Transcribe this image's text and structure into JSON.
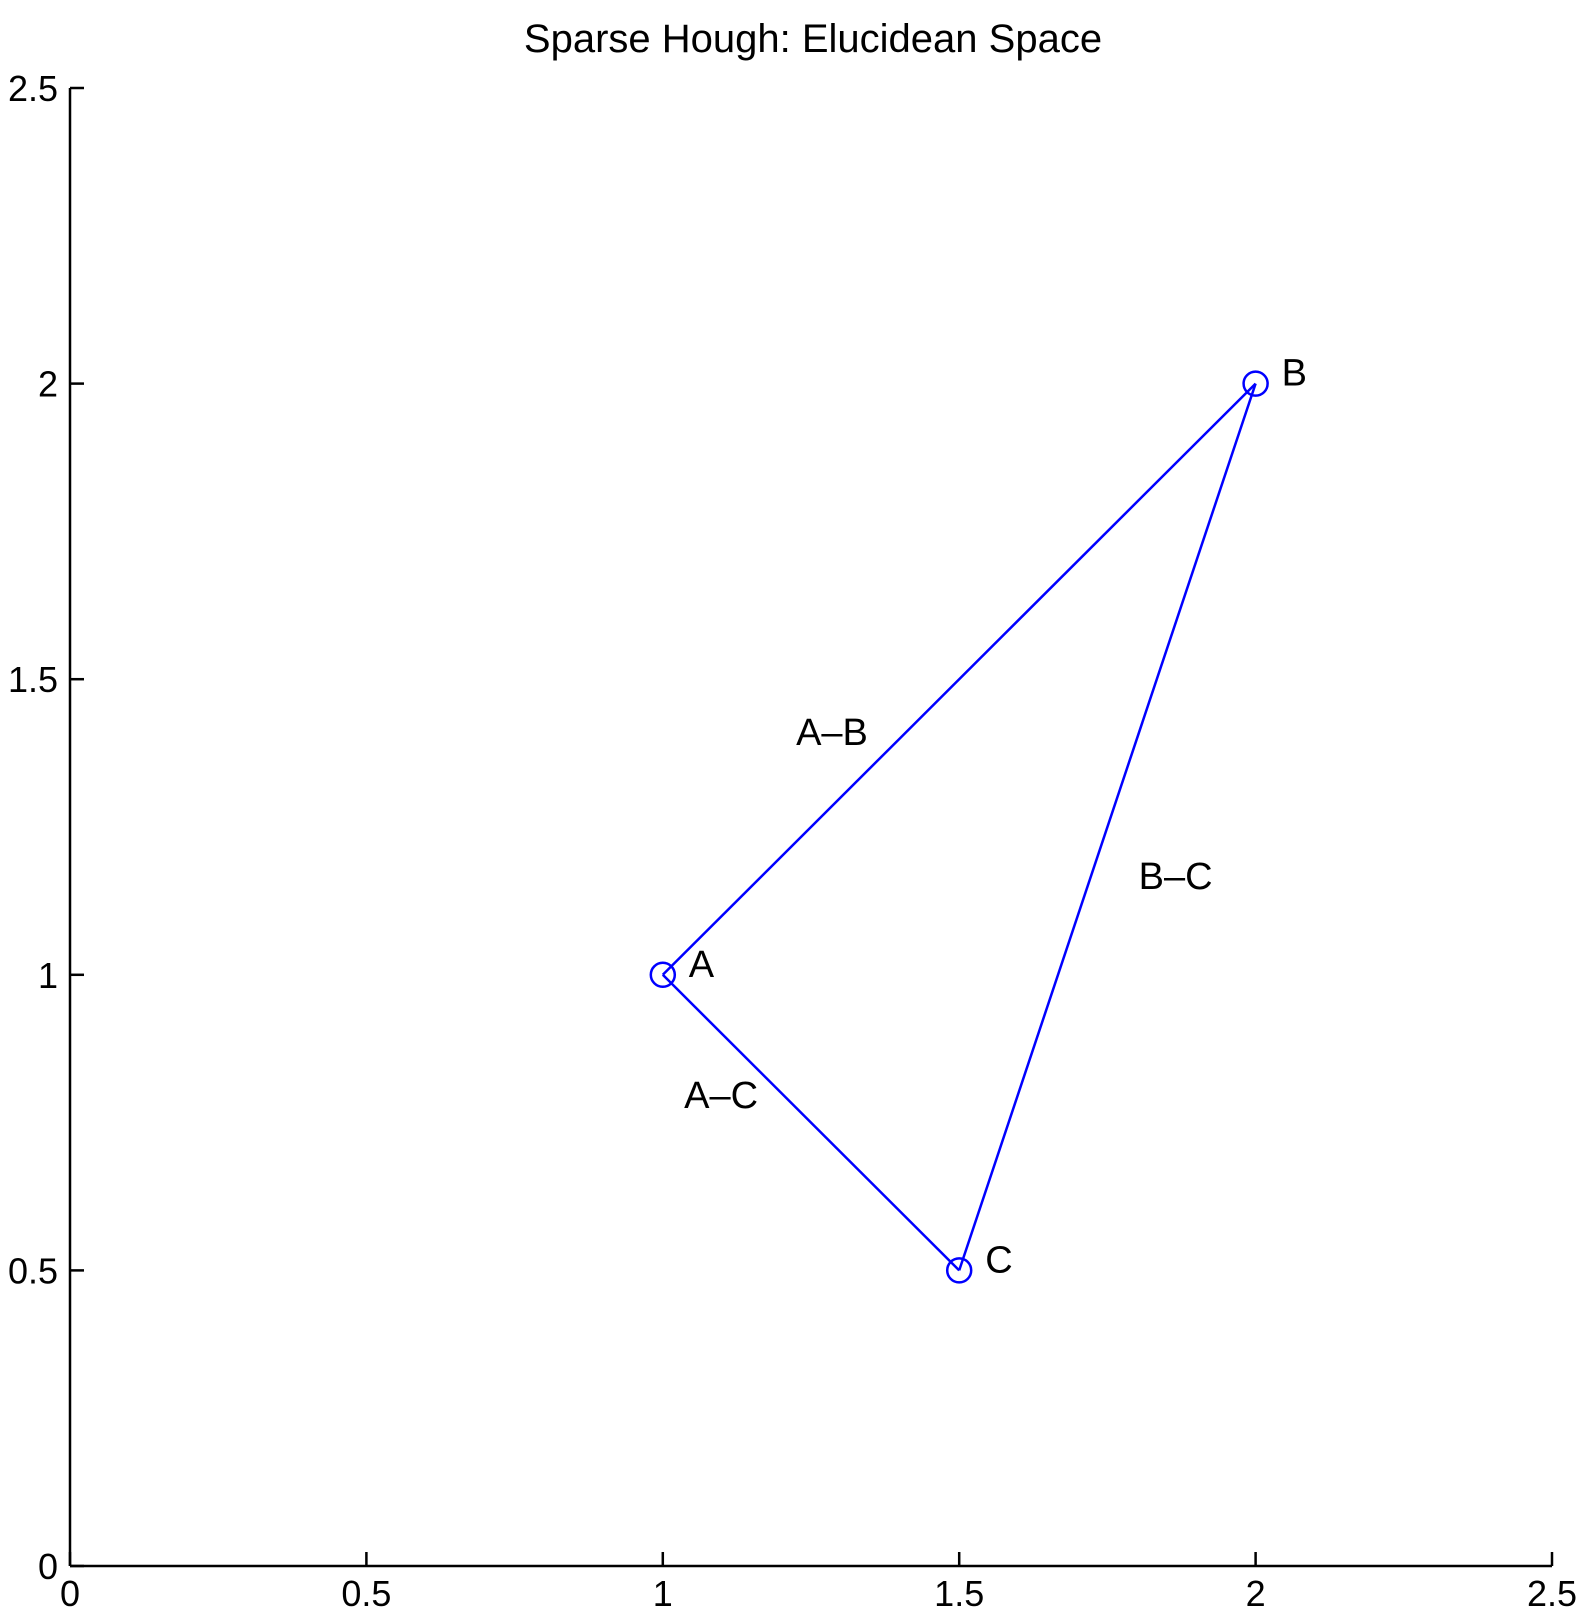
{
  "chart_data": {
    "type": "line",
    "title": "Sparse Hough: Elucidean Space",
    "xlabel": "",
    "ylabel": "",
    "xlim": [
      0,
      2.5
    ],
    "ylim": [
      0,
      2.5
    ],
    "x_ticks": [
      "0",
      "0.5",
      "1",
      "1.5",
      "2",
      "2.5"
    ],
    "y_ticks": [
      "0",
      "0.5",
      "1",
      "1.5",
      "2",
      "2.5"
    ],
    "grid": false,
    "line_color": "#0000ff",
    "points": [
      {
        "label": "A",
        "x": 1.0,
        "y": 1.0
      },
      {
        "label": "B",
        "x": 2.0,
        "y": 2.0
      },
      {
        "label": "C",
        "x": 1.5,
        "y": 0.5
      }
    ],
    "segments": [
      {
        "label": "A–B",
        "from": "A",
        "to": "B"
      },
      {
        "label": "B–C",
        "from": "B",
        "to": "C"
      },
      {
        "label": "A–C",
        "from": "A",
        "to": "C"
      }
    ]
  }
}
